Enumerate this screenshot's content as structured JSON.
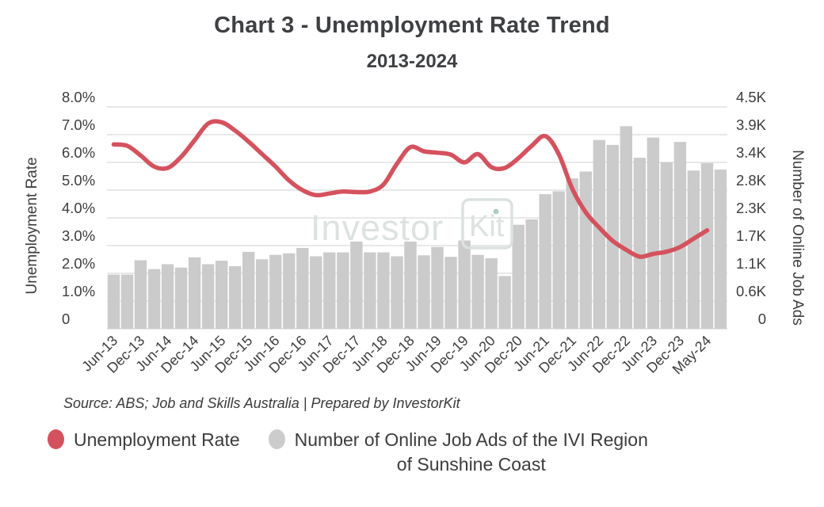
{
  "title": "Chart 3 - Unemployment Rate Trend",
  "subtitle": "2013-2024",
  "watermark": {
    "text": "Investor",
    "boxed_text": "Kit"
  },
  "source_note": "Source: ABS; Job and Skills Australia | Prepared by InvestorKit",
  "legend": {
    "items": [
      {
        "label": "Unemployment Rate",
        "color": "#d4525e",
        "lines": [
          "Unemployment Rate"
        ]
      },
      {
        "label": "Number of Online Job Ads of the IVI Region of Sunshine Coast",
        "color": "#cccccc",
        "lines": [
          "Number of Online Job Ads of the IVI Region",
          "of Sunshine Coast"
        ]
      }
    ]
  },
  "colors": {
    "line": "#d4525e",
    "bar": "#cbcbcb",
    "grid": "#d9d9d9",
    "text": "#3d3d3d",
    "title_text": "#3e4043",
    "watermark": "#dce2df",
    "watermark_dot_green": "#a9cebc"
  },
  "chart_data": {
    "type": "combo (bar + line, dual axis)",
    "title": "Chart 3 - Unemployment Rate Trend",
    "subtitle": "2013-2024",
    "grid": true,
    "legend_position": "bottom-left",
    "x_tick_labels": [
      "Jun-13",
      "Dec-13",
      "Jun-14",
      "Dec-14",
      "Jun-15",
      "Dec-15",
      "Jun-16",
      "Dec-16",
      "Jun-17",
      "Dec-17",
      "Jun-18",
      "Dec-18",
      "Jun-19",
      "Dec-19",
      "Jun-20",
      "Dec-20",
      "Jun-21",
      "Dec-21",
      "Jun-22",
      "Dec-22",
      "Jun-23",
      "Dec-23",
      "May-24"
    ],
    "x_label_every_n_bars": 2,
    "left_axis": {
      "title": "Unemployment Rate",
      "unit": "%",
      "ticks": [
        "8.0%",
        "7.0%",
        "6.0%",
        "5.0%",
        "4.0%",
        "3.0%",
        "2.0%",
        "1.0%",
        "0"
      ],
      "tick_values": [
        8,
        7,
        6,
        5,
        4,
        3,
        2,
        1,
        0
      ],
      "max": 8
    },
    "right_axis": {
      "title": "Number of Online Job Ads",
      "unit": "K",
      "ticks": [
        "4.5K",
        "3.9K",
        "3.4K",
        "2.8K",
        "2.3K",
        "1.7K",
        "1.1K",
        "0.6K",
        "0"
      ],
      "tick_values": [
        4.5,
        3.9,
        3.4,
        2.8,
        2.3,
        1.7,
        1.1,
        0.6,
        0
      ],
      "max": 4.5
    },
    "series": [
      {
        "name": "Unemployment Rate",
        "type": "line",
        "axis": "left",
        "color": "#d4525e",
        "values": [
          6.65,
          6.6,
          6.25,
          5.85,
          5.8,
          6.2,
          6.8,
          7.4,
          7.45,
          7.15,
          6.75,
          6.3,
          5.85,
          5.35,
          5.0,
          4.82,
          4.88,
          4.95,
          4.93,
          4.95,
          5.2,
          5.95,
          6.55,
          6.4,
          6.35,
          6.28,
          6.0,
          6.3,
          5.83,
          5.8,
          6.15,
          6.6,
          6.95,
          6.3,
          5.05,
          4.2,
          3.65,
          3.17,
          2.85,
          2.6,
          2.7,
          2.78,
          2.95,
          3.25,
          3.55
        ]
      },
      {
        "name": "Number of Online Job Ads of the IVI Region of Sunshine Coast",
        "type": "bar",
        "axis": "right",
        "color": "#cbcbcb",
        "values": [
          1.1,
          1.1,
          1.39,
          1.21,
          1.31,
          1.24,
          1.45,
          1.31,
          1.38,
          1.27,
          1.56,
          1.41,
          1.5,
          1.53,
          1.64,
          1.47,
          1.55,
          1.55,
          1.77,
          1.55,
          1.55,
          1.47,
          1.77,
          1.49,
          1.66,
          1.46,
          1.79,
          1.5,
          1.43,
          1.07,
          2.11,
          2.22,
          2.73,
          2.79,
          3.05,
          3.19,
          3.83,
          3.73,
          4.11,
          3.47,
          3.88,
          3.38,
          3.79,
          3.21,
          3.36,
          3.23
        ]
      }
    ]
  }
}
